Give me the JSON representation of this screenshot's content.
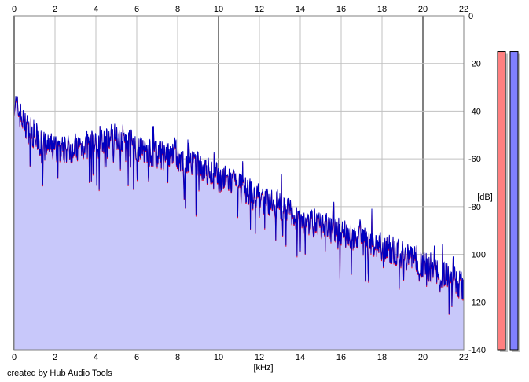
{
  "chart_data": {
    "type": "area",
    "credit": "created by Hub Audio Tools",
    "xlabel": "[kHz]",
    "ylabel": "[dB]",
    "xlim": [
      0,
      22
    ],
    "ylim": [
      -140,
      0
    ],
    "x_ticks": [
      0,
      2,
      4,
      6,
      8,
      10,
      12,
      14,
      16,
      18,
      20,
      22
    ],
    "y_ticks": [
      0,
      -20,
      -40,
      -60,
      -80,
      -100,
      -120,
      -140
    ],
    "grid": true,
    "colors": {
      "fill": "#c8c8fa",
      "line_blue": "#0000c0",
      "line_red": "#e0002a",
      "grid_minor": "#c0c0c0",
      "grid_major": "#808080",
      "meter_left": "#ff8080",
      "meter_right": "#8080ff"
    },
    "series": [
      {
        "x": [
          0,
          0.5,
          1,
          1.5,
          2,
          2.5,
          3,
          3.5,
          4,
          4.5,
          5,
          5.5,
          6,
          6.5,
          7,
          7.5,
          8,
          8.5,
          9,
          9.5,
          10,
          10.5,
          11,
          11.5,
          12,
          12.5,
          13,
          13.5,
          14,
          14.5,
          15,
          15.5,
          16,
          16.5,
          17,
          17.5,
          18,
          18.5,
          19,
          19.5,
          20,
          20.5,
          21,
          21.5,
          22
        ],
        "values": [
          -36,
          -45,
          -50,
          -55,
          -55,
          -56,
          -55,
          -54,
          -54,
          -52,
          -50,
          -52,
          -55,
          -57,
          -58,
          -59,
          -60,
          -62,
          -63,
          -65,
          -68,
          -69,
          -72,
          -74,
          -77,
          -78,
          -80,
          -82,
          -85,
          -86,
          -88,
          -89,
          -91,
          -92,
          -94,
          -95,
          -97,
          -98,
          -100,
          -101,
          -104,
          -106,
          -108,
          -110,
          -114
        ]
      }
    ],
    "meters": [
      {
        "channel": "left",
        "level_db": -15
      },
      {
        "channel": "right",
        "level_db": -15
      }
    ]
  }
}
